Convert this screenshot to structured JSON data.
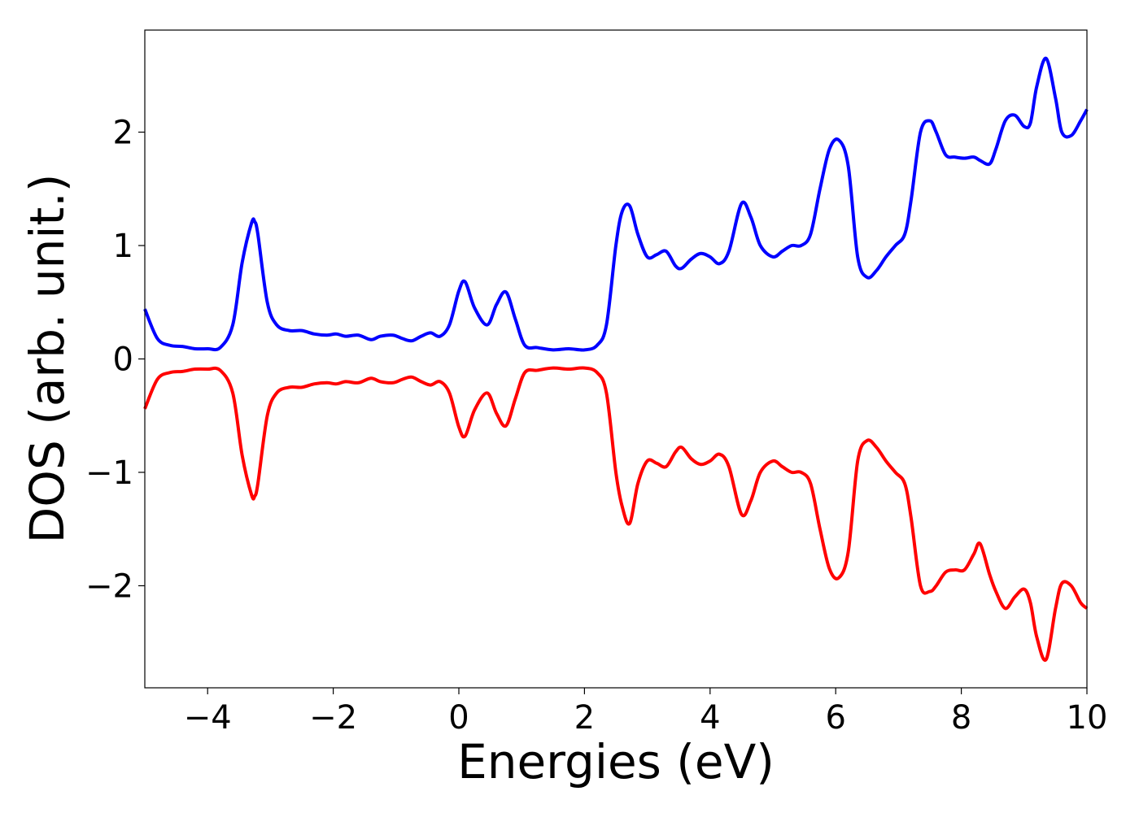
{
  "chart_data": {
    "type": "line",
    "xlabel": "Energies (eV)",
    "ylabel": "DOS (arb. unit.)",
    "xlim": [
      -5,
      10
    ],
    "ylim": [
      -2.9,
      2.9
    ],
    "x_ticks": [
      -4,
      -2,
      0,
      2,
      4,
      6,
      8,
      10
    ],
    "x_tick_labels": [
      "−4",
      "−2",
      "0",
      "2",
      "4",
      "6",
      "8",
      "10"
    ],
    "y_ticks": [
      -2,
      -1,
      0,
      1,
      2
    ],
    "y_tick_labels": [
      "−2",
      "−1",
      "0",
      "1",
      "2"
    ],
    "grid": false,
    "legend": "none",
    "series": [
      {
        "color": "#0000ff",
        "x": [
          -5.0,
          -4.8,
          -4.6,
          -4.4,
          -4.2,
          -4.0,
          -3.8,
          -3.6,
          -3.45,
          -3.3,
          -3.25,
          -3.2,
          -3.05,
          -2.9,
          -2.7,
          -2.5,
          -2.3,
          -2.1,
          -1.95,
          -1.8,
          -1.6,
          -1.4,
          -1.25,
          -1.05,
          -0.9,
          -0.75,
          -0.6,
          -0.45,
          -0.3,
          -0.15,
          0.0,
          0.1,
          0.25,
          0.45,
          0.6,
          0.75,
          0.9,
          1.05,
          1.25,
          1.5,
          1.75,
          2.0,
          2.2,
          2.35,
          2.5,
          2.6,
          2.72,
          2.85,
          3.0,
          3.15,
          3.3,
          3.45,
          3.55,
          3.7,
          3.85,
          4.0,
          4.15,
          4.3,
          4.5,
          4.65,
          4.8,
          5.0,
          5.15,
          5.3,
          5.45,
          5.6,
          5.75,
          5.9,
          6.05,
          6.2,
          6.35,
          6.5,
          6.65,
          6.8,
          6.95,
          7.1,
          7.2,
          7.35,
          7.5,
          7.6,
          7.75,
          7.9,
          8.05,
          8.2,
          8.3,
          8.45,
          8.55,
          8.7,
          8.85,
          9.0,
          9.1,
          9.2,
          9.35,
          9.5,
          9.6,
          9.75,
          9.9,
          10.0
        ],
        "values": [
          0.44,
          0.18,
          0.12,
          0.11,
          0.09,
          0.09,
          0.1,
          0.3,
          0.85,
          1.2,
          1.21,
          1.1,
          0.5,
          0.3,
          0.25,
          0.25,
          0.22,
          0.21,
          0.22,
          0.2,
          0.21,
          0.17,
          0.2,
          0.21,
          0.18,
          0.16,
          0.2,
          0.23,
          0.2,
          0.3,
          0.6,
          0.68,
          0.45,
          0.3,
          0.48,
          0.59,
          0.35,
          0.12,
          0.1,
          0.08,
          0.09,
          0.08,
          0.12,
          0.3,
          1.0,
          1.3,
          1.35,
          1.1,
          0.9,
          0.92,
          0.95,
          0.82,
          0.8,
          0.88,
          0.93,
          0.9,
          0.84,
          0.95,
          1.37,
          1.25,
          1.0,
          0.9,
          0.95,
          1.0,
          1.0,
          1.1,
          1.5,
          1.85,
          1.93,
          1.7,
          0.9,
          0.72,
          0.78,
          0.9,
          1.0,
          1.1,
          1.4,
          2.0,
          2.1,
          2.0,
          1.8,
          1.78,
          1.77,
          1.78,
          1.75,
          1.72,
          1.85,
          2.1,
          2.15,
          2.05,
          2.08,
          2.4,
          2.65,
          2.3,
          2.0,
          1.97,
          2.1,
          2.2
        ]
      },
      {
        "color": "#ff0000",
        "x": [
          -5.0,
          -4.8,
          -4.6,
          -4.4,
          -4.2,
          -4.0,
          -3.8,
          -3.6,
          -3.45,
          -3.3,
          -3.25,
          -3.2,
          -3.05,
          -2.9,
          -2.7,
          -2.5,
          -2.3,
          -2.1,
          -1.95,
          -1.8,
          -1.6,
          -1.4,
          -1.25,
          -1.05,
          -0.9,
          -0.75,
          -0.6,
          -0.45,
          -0.3,
          -0.15,
          0.0,
          0.1,
          0.25,
          0.45,
          0.6,
          0.75,
          0.9,
          1.05,
          1.25,
          1.5,
          1.75,
          2.0,
          2.2,
          2.35,
          2.5,
          2.6,
          2.72,
          2.85,
          3.0,
          3.15,
          3.3,
          3.45,
          3.55,
          3.7,
          3.85,
          4.0,
          4.15,
          4.3,
          4.5,
          4.65,
          4.8,
          5.0,
          5.15,
          5.3,
          5.45,
          5.6,
          5.75,
          5.9,
          6.05,
          6.2,
          6.35,
          6.5,
          6.65,
          6.8,
          6.95,
          7.1,
          7.2,
          7.35,
          7.5,
          7.6,
          7.75,
          7.9,
          8.05,
          8.2,
          8.3,
          8.45,
          8.55,
          8.7,
          8.85,
          9.0,
          9.1,
          9.2,
          9.35,
          9.5,
          9.6,
          9.75,
          9.9,
          10.0
        ],
        "values": [
          -0.44,
          -0.18,
          -0.12,
          -0.11,
          -0.09,
          -0.09,
          -0.1,
          -0.3,
          -0.85,
          -1.2,
          -1.21,
          -1.1,
          -0.5,
          -0.3,
          -0.25,
          -0.25,
          -0.22,
          -0.21,
          -0.22,
          -0.2,
          -0.21,
          -0.17,
          -0.2,
          -0.21,
          -0.18,
          -0.16,
          -0.2,
          -0.23,
          -0.2,
          -0.3,
          -0.6,
          -0.68,
          -0.45,
          -0.3,
          -0.48,
          -0.59,
          -0.35,
          -0.12,
          -0.1,
          -0.08,
          -0.09,
          -0.08,
          -0.12,
          -0.3,
          -1.0,
          -1.3,
          -1.45,
          -1.1,
          -0.9,
          -0.92,
          -0.95,
          -0.82,
          -0.78,
          -0.88,
          -0.93,
          -0.9,
          -0.84,
          -0.95,
          -1.37,
          -1.25,
          -1.0,
          -0.9,
          -0.95,
          -1.0,
          -1.0,
          -1.1,
          -1.5,
          -1.85,
          -1.93,
          -1.7,
          -0.9,
          -0.72,
          -0.78,
          -0.9,
          -1.0,
          -1.1,
          -1.4,
          -2.0,
          -2.05,
          -2.0,
          -1.88,
          -1.86,
          -1.86,
          -1.72,
          -1.63,
          -1.9,
          -2.05,
          -2.2,
          -2.1,
          -2.03,
          -2.15,
          -2.45,
          -2.65,
          -2.2,
          -1.98,
          -2.0,
          -2.15,
          -2.2
        ]
      }
    ]
  }
}
